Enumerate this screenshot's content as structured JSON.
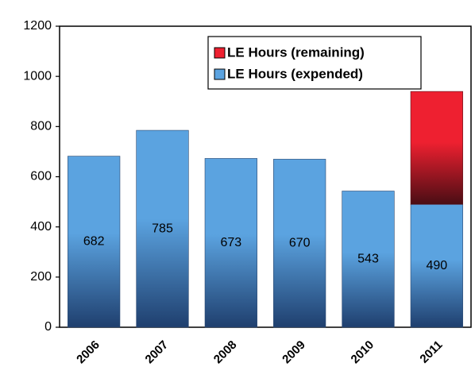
{
  "chart_data": {
    "type": "stacked_bar",
    "categories": [
      "2006",
      "2007",
      "2008",
      "2009",
      "2010",
      "2011"
    ],
    "series": [
      {
        "name": "LE Hours (expended)",
        "color": "#5ba3e0",
        "values": [
          682,
          785,
          673,
          670,
          543,
          490
        ]
      },
      {
        "name": "LE Hours (remaining)",
        "color": "#ee2030",
        "values": [
          0,
          0,
          0,
          0,
          0,
          450
        ]
      }
    ],
    "ylim": [
      0,
      1200
    ],
    "yticks": [
      0,
      200,
      400,
      600,
      800,
      1000,
      1200
    ],
    "legend": "top-right"
  }
}
